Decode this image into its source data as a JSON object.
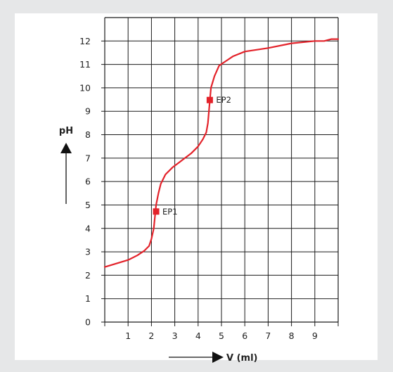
{
  "chart_data": {
    "type": "line",
    "title": "",
    "xlabel": "V (ml)",
    "ylabel": "pH",
    "xlim": [
      0,
      10
    ],
    "ylim": [
      0,
      13
    ],
    "x_ticks": [
      1,
      2,
      3,
      4,
      5,
      6,
      7,
      8,
      9
    ],
    "y_ticks": [
      0,
      1,
      2,
      3,
      4,
      5,
      6,
      7,
      8,
      9,
      10,
      11,
      12
    ],
    "grid": true,
    "series": [
      {
        "color": "#e3222a",
        "points": [
          [
            0.0,
            2.35
          ],
          [
            0.5,
            2.5
          ],
          [
            1.0,
            2.65
          ],
          [
            1.4,
            2.85
          ],
          [
            1.7,
            3.05
          ],
          [
            1.9,
            3.25
          ],
          [
            2.0,
            3.55
          ],
          [
            2.1,
            4.0
          ],
          [
            2.15,
            4.5
          ],
          [
            2.2,
            5.0
          ],
          [
            2.3,
            5.5
          ],
          [
            2.4,
            5.9
          ],
          [
            2.6,
            6.3
          ],
          [
            2.9,
            6.6
          ],
          [
            3.3,
            6.9
          ],
          [
            3.7,
            7.2
          ],
          [
            4.0,
            7.5
          ],
          [
            4.2,
            7.8
          ],
          [
            4.35,
            8.1
          ],
          [
            4.42,
            8.5
          ],
          [
            4.48,
            9.2
          ],
          [
            4.55,
            10.0
          ],
          [
            4.7,
            10.5
          ],
          [
            4.9,
            10.95
          ],
          [
            5.2,
            11.15
          ],
          [
            5.5,
            11.35
          ],
          [
            6.0,
            11.55
          ],
          [
            7.0,
            11.7
          ],
          [
            8.0,
            11.9
          ],
          [
            9.0,
            12.0
          ],
          [
            9.4,
            12.0
          ],
          [
            9.7,
            12.08
          ],
          [
            10.0,
            12.08
          ]
        ]
      }
    ],
    "markers": [
      {
        "label": "EP1",
        "x": 2.2,
        "y": 4.72,
        "color": "#e3222a"
      },
      {
        "label": "EP2",
        "x": 4.5,
        "y": 9.48,
        "color": "#e3222a"
      }
    ]
  }
}
